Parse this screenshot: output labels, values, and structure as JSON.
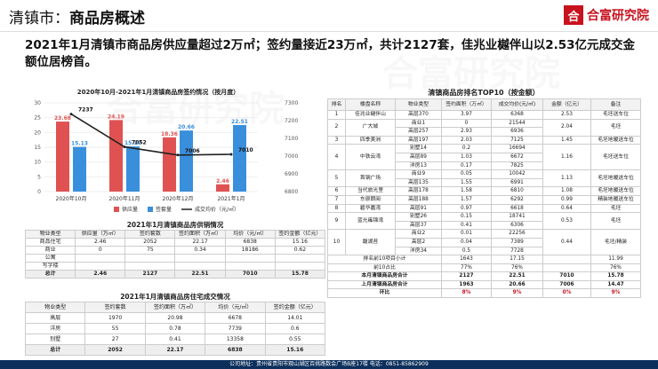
{
  "header": {
    "city": "清镇市：",
    "title": "商品房概述",
    "logo_mark": "合",
    "logo_text": "合富研究院"
  },
  "headline": "2021年1月清镇市商品房供应量超过2万㎡；签约量接近23万㎡，共计2127套，佳兆业樾伴山以2.53亿元成交金额位居榜首。",
  "footer": "公司地址：贵州省贵阳市观山湖区百挑路数会广场B座17楼 电话：0851-85862909",
  "chart_data": {
    "type": "bar",
    "title": "2020年10月-2021年1月清镇商品房签约情况（按月度）",
    "categories": [
      "2020年10月",
      "2020年11月",
      "2020年12月",
      "2021年1月"
    ],
    "series": [
      {
        "name": "供应量",
        "color": "#e05252",
        "values": [
          23.68,
          24.19,
          18.36,
          2.46
        ]
      },
      {
        "name": "签套量",
        "color": "#3a8fdc",
        "values": [
          15.13,
          15.27,
          20.66,
          22.51
        ]
      },
      {
        "name": "成交均价（元/㎡）",
        "color": "#222222",
        "type": "line",
        "values": [
          7237,
          7052,
          7006,
          7010
        ]
      }
    ],
    "ylim": [
      0,
      30
    ],
    "y_ticks": [
      0,
      5,
      10,
      15,
      20,
      25,
      30
    ],
    "y2lim": [
      6800,
      7300
    ],
    "y2_ticks": [
      6800,
      6900,
      7000,
      7100,
      7200,
      7300
    ]
  },
  "supply": {
    "title": "2021年1月清镇商品房供销情况",
    "headers": [
      "物业类型",
      "供应量（万㎡）",
      "签约套数",
      "签约面积（万㎡）",
      "均价（元/㎡）",
      "签约金额（亿元）"
    ],
    "rows": [
      [
        "商品住宅",
        "2.46",
        "2052",
        "22.17",
        "6838",
        "15.16"
      ],
      [
        "商业",
        "0",
        "75",
        "0.34",
        "18186",
        "0.62"
      ],
      [
        "公寓",
        "",
        "",
        "",
        "",
        ""
      ],
      [
        "写字楼",
        "",
        "",
        "",
        "",
        ""
      ],
      [
        "总计",
        "2.46",
        "2127",
        "22.51",
        "7010",
        "15.78"
      ]
    ]
  },
  "residential": {
    "title": "2021年1月清镇商品房住宅成交情况",
    "headers": [
      "物业类型",
      "签约套数",
      "签约面积（万㎡）",
      "均价（元/㎡）",
      "签约金额（亿元）"
    ],
    "rows": [
      [
        "高层",
        "1970",
        "20.98",
        "6678",
        "14.01"
      ],
      [
        "洋房",
        "55",
        "0.78",
        "7739",
        "0.6"
      ],
      [
        "别墅",
        "27",
        "0.41",
        "13358",
        "0.55"
      ],
      [
        "总计",
        "2052",
        "22.17",
        "6838",
        "15.16"
      ]
    ]
  },
  "top10": {
    "title": "清镇商品房排名TOP10（按金额）",
    "headers": [
      "排名",
      "楼盘名称",
      "物业类型",
      "签约面积（万㎡）",
      "成交均价(元/㎡)",
      "金额（亿元）",
      "备注"
    ]
  }
}
